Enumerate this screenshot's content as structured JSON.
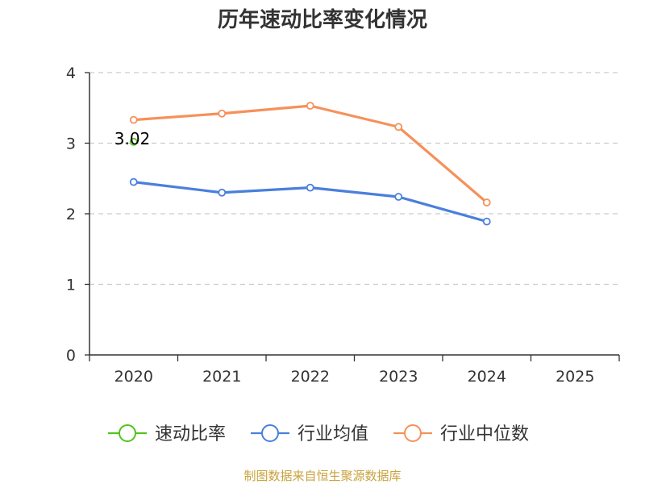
{
  "chart_data": {
    "type": "line",
    "title": "历年速动比率变化情况",
    "categories": [
      "2020",
      "2021",
      "2022",
      "2023",
      "2024",
      "2025"
    ],
    "ylim": [
      0,
      4
    ],
    "yticks": [
      "0",
      "1",
      "2",
      "3",
      "4"
    ],
    "grid": true,
    "legend_position": "bottom",
    "series": [
      {
        "name": "速动比率",
        "color": "#52c41a",
        "values": [
          3.02,
          null,
          null,
          null,
          null,
          null
        ]
      },
      {
        "name": "行业均值",
        "color": "#4a7fdc",
        "values": [
          2.45,
          2.3,
          2.37,
          2.24,
          1.89,
          null
        ]
      },
      {
        "name": "行业中位数",
        "color": "#f5915a",
        "values": [
          3.33,
          3.42,
          3.53,
          3.23,
          2.16,
          null
        ]
      }
    ],
    "data_label": "3.02",
    "source": "制图数据来自恒生聚源数据库"
  }
}
